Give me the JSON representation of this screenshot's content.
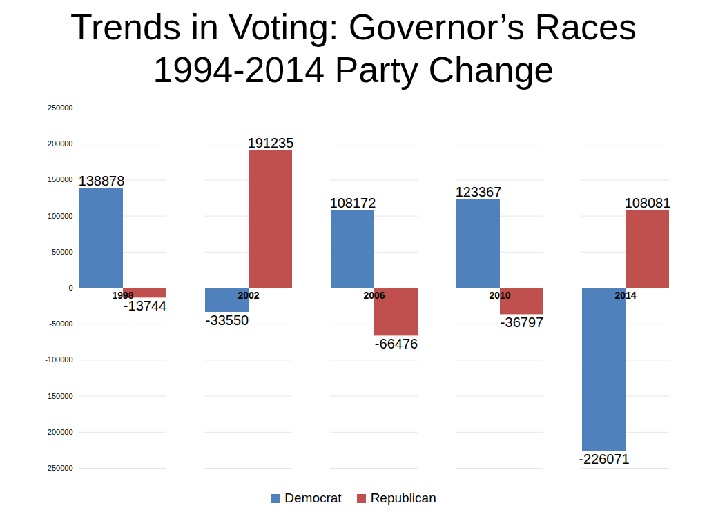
{
  "chart_data": {
    "type": "bar",
    "title": "Trends in Voting: Governor’s Races 1994-2014 Party Change",
    "categories": [
      "1998",
      "2002",
      "2006",
      "2010",
      "2014"
    ],
    "series": [
      {
        "name": "Democrat",
        "color": "#4F81BD",
        "values": [
          138878,
          -33550,
          108172,
          123367,
          -226071
        ]
      },
      {
        "name": "Republican",
        "color": "#C0504D",
        "values": [
          -13744,
          191235,
          -66476,
          -36797,
          108081
        ]
      }
    ],
    "ylim": [
      -250000,
      250000
    ],
    "yticks": [
      -250000,
      -200000,
      -150000,
      -100000,
      -50000,
      0,
      50000,
      100000,
      150000,
      200000,
      250000
    ],
    "grid": true,
    "legend": "bottom",
    "data_labels": true
  }
}
